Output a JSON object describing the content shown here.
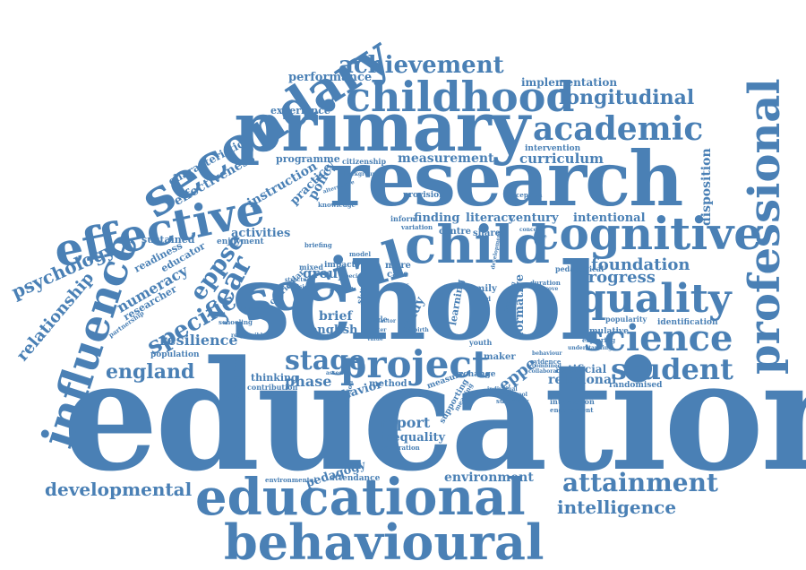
{
  "cloud": {
    "color": "#4a80b5",
    "words": {
      "education": "education",
      "school": "school",
      "research": "research",
      "primary": "primary",
      "secondary": "secondary",
      "educational": "educational",
      "behavioural": "behavioural",
      "childhood": "childhood",
      "achievement": "achievement",
      "professional": "professional",
      "cognitive": "cognitive",
      "social": "social",
      "child": "child",
      "effective": "effective",
      "influence": "influence",
      "project": "project",
      "quality": "quality",
      "science": "science",
      "academic": "academic",
      "longitudinal": "longitudinal",
      "student": "student",
      "attainment": "attainment",
      "intelligence": "intelligence",
      "developmental": "developmental",
      "england": "england",
      "stage": "stage",
      "year": "year",
      "specific": "specific",
      "eppse": "eppse",
      "psychology": "psychology",
      "relationship": "relationship",
      "foundation": "foundation",
      "progress": "progress",
      "performance": "performance",
      "implementation": "implementation",
      "measurement": "measurement",
      "curriculum": "curriculum",
      "disposition": "disposition",
      "report": "report",
      "inequality": "inequality",
      "resilience": "resilience",
      "numeracy": "numeracy",
      "phase": "phase",
      "young": "young",
      "effectiveness": "effectiveness",
      "instruction": "instruction",
      "policy": "policy",
      "practice": "practice",
      "finding": "finding",
      "literacy": "literacy",
      "century": "century",
      "intentional": "intentional",
      "environment": "environment",
      "pedagogy": "pedagogy",
      "activities": "activities",
      "group": "group",
      "brief": "brief",
      "english": "english",
      "relational": "relational",
      "artificial": "artificial",
      "eppe": "eppe",
      "thinking": "thinking",
      "formative": "formative",
      "experience": "experience",
      "programme": "programme",
      "citizenship": "citizenship",
      "characteristic": "characteristic",
      "sustained": "sustained",
      "readiness": "readiness",
      "educator": "educator",
      "researcher": "researcher",
      "enjoyment": "enjoyment",
      "population": "population",
      "behavior": "behavior",
      "method": "method",
      "measure": "measure",
      "exchange": "exchange",
      "maker": "maker",
      "shared": "shared",
      "centre": "centre",
      "attendance": "attendance",
      "more": "more",
      "care": "care",
      "impact": "impact",
      "family": "family",
      "provision": "provision",
      "study": "study",
      "intervention": "intervention",
      "pedagogical": "pedagogical",
      "randomised": "randomised",
      "identification": "identification",
      "cumulative": "cumulative",
      "popularity": "popularity",
      "exploring": "exploring",
      "interaction": "interaction",
      "engagement": "engagement",
      "contribution": "contribution",
      "mixed": "mixed",
      "model": "model",
      "briefing": "briefing",
      "variation": "variation",
      "inform": "inform",
      "evidence": "evidence",
      "collaborative": "collaborative",
      "supporting": "supporting",
      "summary": "summary",
      "exploration": "exploration",
      "environmental": "environmental",
      "curricular": "curricular",
      "scale": "scale",
      "skill": "skill",
      "range": "range",
      "schooling": "schooling",
      "partnership": "partnership",
      "knowledge": "knowledge",
      "alternative": "alternative",
      "cluster": "cluster",
      "value": "value",
      "youth": "youth",
      "rating": "rating",
      "learning": "learning",
      "nichd": "nichd",
      "duration": "duration",
      "improve": "improve",
      "reception": "reception",
      "understanding": "understanding",
      "behaviour": "behaviour",
      "individual": "individual",
      "responsible": "responsible",
      "structure": "structure",
      "decision": "decision",
      "special": "special",
      "distribution": "distribution",
      "meaning": "meaning",
      "assess": "assess",
      "important": "important",
      "combined": "combined",
      "preschool": "preschool",
      "changing": "changing",
      "concept": "concept",
      "factor": "factor",
      "background": "background",
      "self": "self",
      "birth": "birth",
      "math": "math",
      "development": "development",
      "promoting": "promoting"
    }
  }
}
